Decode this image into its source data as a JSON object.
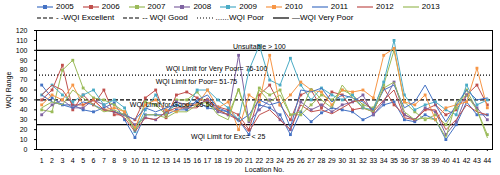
{
  "chart_data": {
    "type": "line",
    "xlabel": "Location No.",
    "ylabel": "WQI Range",
    "x": [
      1,
      2,
      3,
      4,
      5,
      6,
      7,
      8,
      9,
      10,
      11,
      12,
      13,
      14,
      15,
      16,
      17,
      18,
      19,
      20,
      21,
      22,
      23,
      24,
      25,
      26,
      27,
      28,
      29,
      30,
      31,
      32,
      33,
      34,
      35,
      36,
      37,
      38,
      39,
      40,
      41,
      42,
      43,
      44
    ],
    "series": [
      {
        "name": "2005",
        "color": "#4472C4",
        "marker": "square",
        "values": [
          65,
          52,
          45,
          45,
          40,
          38,
          42,
          47,
          30,
          12,
          35,
          35,
          35,
          40,
          40,
          48,
          42,
          40,
          38,
          30,
          15,
          45,
          42,
          35,
          15,
          38,
          28,
          37,
          42,
          40,
          38,
          30,
          35,
          45,
          48,
          30,
          28,
          35,
          30,
          10,
          25,
          48,
          35,
          35
        ]
      },
      {
        "name": "2006",
        "color": "#C0504D",
        "marker": "square",
        "values": [
          50,
          60,
          85,
          40,
          55,
          45,
          60,
          35,
          35,
          30,
          52,
          60,
          32,
          55,
          58,
          52,
          48,
          43,
          40,
          35,
          20,
          55,
          65,
          45,
          30,
          55,
          60,
          42,
          58,
          55,
          40,
          42,
          38,
          62,
          45,
          35,
          30,
          40,
          45,
          35,
          40,
          55,
          65,
          45
        ]
      },
      {
        "name": "2007",
        "color": "#9BBB59",
        "marker": "square",
        "values": [
          40,
          38,
          80,
          90,
          62,
          52,
          50,
          45,
          38,
          20,
          48,
          45,
          35,
          50,
          50,
          58,
          45,
          40,
          35,
          60,
          30,
          62,
          55,
          60,
          35,
          35,
          45,
          55,
          50,
          60,
          55,
          45,
          42,
          65,
          100,
          48,
          38,
          30,
          35,
          25,
          42,
          60,
          40,
          15
        ]
      },
      {
        "name": "2008",
        "color": "#8064A2",
        "marker": "square",
        "values": [
          35,
          45,
          50,
          42,
          42,
          50,
          45,
          38,
          35,
          25,
          32,
          30,
          38,
          48,
          45,
          45,
          50,
          38,
          35,
          95,
          28,
          40,
          50,
          30,
          20,
          48,
          40,
          45,
          38,
          45,
          48,
          55,
          35,
          48,
          68,
          35,
          30,
          42,
          38,
          15,
          28,
          55,
          42,
          30
        ]
      },
      {
        "name": "2009",
        "color": "#4BACC6",
        "marker": "square",
        "values": [
          55,
          65,
          55,
          48,
          55,
          60,
          45,
          50,
          42,
          18,
          40,
          55,
          38,
          45,
          42,
          60,
          60,
          50,
          42,
          30,
          80,
          105,
          70,
          65,
          92,
          65,
          50,
          62,
          55,
          50,
          55,
          42,
          40,
          68,
          110,
          55,
          40,
          45,
          48,
          40,
          35,
          65,
          45,
          50
        ]
      },
      {
        "name": "2010",
        "color": "#F79646",
        "marker": "square",
        "values": [
          45,
          55,
          50,
          65,
          45,
          50,
          40,
          42,
          38,
          22,
          45,
          50,
          40,
          38,
          45,
          45,
          60,
          42,
          48,
          20,
          55,
          48,
          95,
          45,
          55,
          68,
          60,
          58,
          45,
          60,
          58,
          60,
          52,
          95,
          102,
          48,
          45,
          55,
          30,
          42,
          45,
          48,
          82,
          42
        ]
      },
      {
        "name": "2011",
        "color": "#4472C4",
        "marker": "none",
        "values": [
          55,
          48,
          45,
          42,
          48,
          45,
          40,
          38,
          35,
          30,
          42,
          38,
          42,
          45,
          40,
          50,
          55,
          42,
          38,
          28,
          35,
          50,
          45,
          48,
          22,
          60,
          58,
          62,
          48,
          55,
          52,
          48,
          40,
          60,
          65,
          42,
          48,
          65,
          45,
          28,
          45,
          60,
          50,
          52
        ]
      },
      {
        "name": "2012",
        "color": "#C0504D",
        "marker": "none",
        "values": [
          55,
          65,
          60,
          45,
          45,
          50,
          40,
          38,
          32,
          18,
          32,
          30,
          38,
          42,
          42,
          42,
          52,
          40,
          35,
          30,
          18,
          35,
          40,
          30,
          20,
          45,
          38,
          40,
          36,
          42,
          48,
          50,
          38,
          50,
          60,
          32,
          30,
          40,
          40,
          20,
          30,
          45,
          38,
          35
        ]
      },
      {
        "name": "2013",
        "color": "#9BBB59",
        "marker": "none",
        "values": [
          42,
          48,
          45,
          60,
          52,
          45,
          38,
          40,
          35,
          20,
          35,
          35,
          32,
          38,
          38,
          45,
          48,
          35,
          30,
          62,
          28,
          60,
          48,
          55,
          35,
          38,
          62,
          50,
          42,
          65,
          52,
          42,
          38,
          62,
          68,
          38,
          30,
          32,
          30,
          12,
          48,
          55,
          40,
          12
        ]
      }
    ],
    "hlines": [
      {
        "y": 100,
        "color": "black",
        "line_style": "solid"
      },
      {
        "y": 75,
        "color": "black",
        "line_style": "dotted"
      },
      {
        "y": 50,
        "color": "black",
        "line_style": "dashed"
      },
      {
        "y": 25,
        "color": "black",
        "line_style": "solid"
      }
    ],
    "legend_items": [
      {
        "name": "- -WQI Excellent",
        "color": "black",
        "line_style": "dashed"
      },
      {
        "name": "-- WQI Good",
        "color": "black",
        "line_style": "dashed"
      },
      {
        "name": "......WQI Poor",
        "color": "black",
        "line_style": "dotted"
      },
      {
        "name": "—WQI Very Poor",
        "color": "black",
        "line_style": "solid"
      }
    ],
    "annotations": [
      {
        "text": "Unsuitable > 100",
        "x": 22,
        "y": 101.5,
        "align": "center"
      },
      {
        "text": "WQI Limit for Very Poor= 76-100",
        "x": 13,
        "y": 79,
        "align": "left"
      },
      {
        "text": "WQI Limit for Poor= 51-75",
        "x": 12,
        "y": 66,
        "align": "left"
      },
      {
        "text": "WQI Limit for Good= 26-50",
        "x": 9.5,
        "y": 43,
        "align": "left"
      },
      {
        "text": "WQI Limit for Exc= < 25",
        "x": 19,
        "y": 11,
        "align": "center"
      }
    ],
    "xlim": [
      0.5,
      44.5
    ],
    "xticks": [
      1,
      2,
      3,
      4,
      5,
      6,
      7,
      8,
      9,
      10,
      11,
      12,
      13,
      14,
      15,
      16,
      17,
      18,
      19,
      20,
      21,
      22,
      23,
      24,
      25,
      26,
      27,
      28,
      29,
      30,
      31,
      32,
      33,
      34,
      35,
      36,
      37,
      38,
      39,
      40,
      41,
      42,
      43,
      44
    ],
    "ylim": [
      0,
      120
    ],
    "yticks": [
      0,
      10,
      20,
      30,
      40,
      50,
      60,
      70,
      80,
      90,
      100,
      110,
      120
    ],
    "grid": false,
    "legend": "upper left"
  }
}
